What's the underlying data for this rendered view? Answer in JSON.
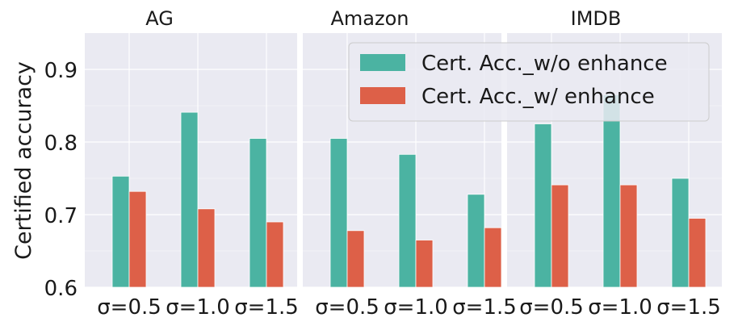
{
  "chart_data": {
    "type": "bar",
    "ylabel": "Certified accuracy",
    "ylim": [
      0.6,
      0.95
    ],
    "yticks": [
      0.6,
      0.7,
      0.8,
      0.9
    ],
    "ytick_labels": [
      "0.6",
      "0.7",
      "0.8",
      "0.9"
    ],
    "grid": true,
    "legend_position": "top-right",
    "series_names": [
      "Cert. Acc._w/o enhance",
      "Cert. Acc._w/ enhance"
    ],
    "colors": [
      "#4bb3a2",
      "#dd6048"
    ],
    "panels": [
      {
        "title": "AG",
        "categories": [
          "σ=0.5",
          "σ=1.0",
          "σ=1.5"
        ],
        "series": [
          {
            "values": [
              0.753,
              0.841,
              0.805
            ]
          },
          {
            "values": [
              0.732,
              0.708,
              0.69
            ]
          }
        ]
      },
      {
        "title": "Amazon",
        "categories": [
          "σ=0.5",
          "σ=1.0",
          "σ=1.5"
        ],
        "series": [
          {
            "values": [
              0.805,
              0.783,
              0.728
            ]
          },
          {
            "values": [
              0.678,
              0.665,
              0.682
            ]
          }
        ]
      },
      {
        "title": "IMDB",
        "categories": [
          "σ=0.5",
          "σ=1.0",
          "σ=1.5"
        ],
        "series": [
          {
            "values": [
              0.825,
              0.865,
              0.75
            ]
          },
          {
            "values": [
              0.741,
              0.741,
              0.695
            ]
          }
        ]
      }
    ]
  }
}
